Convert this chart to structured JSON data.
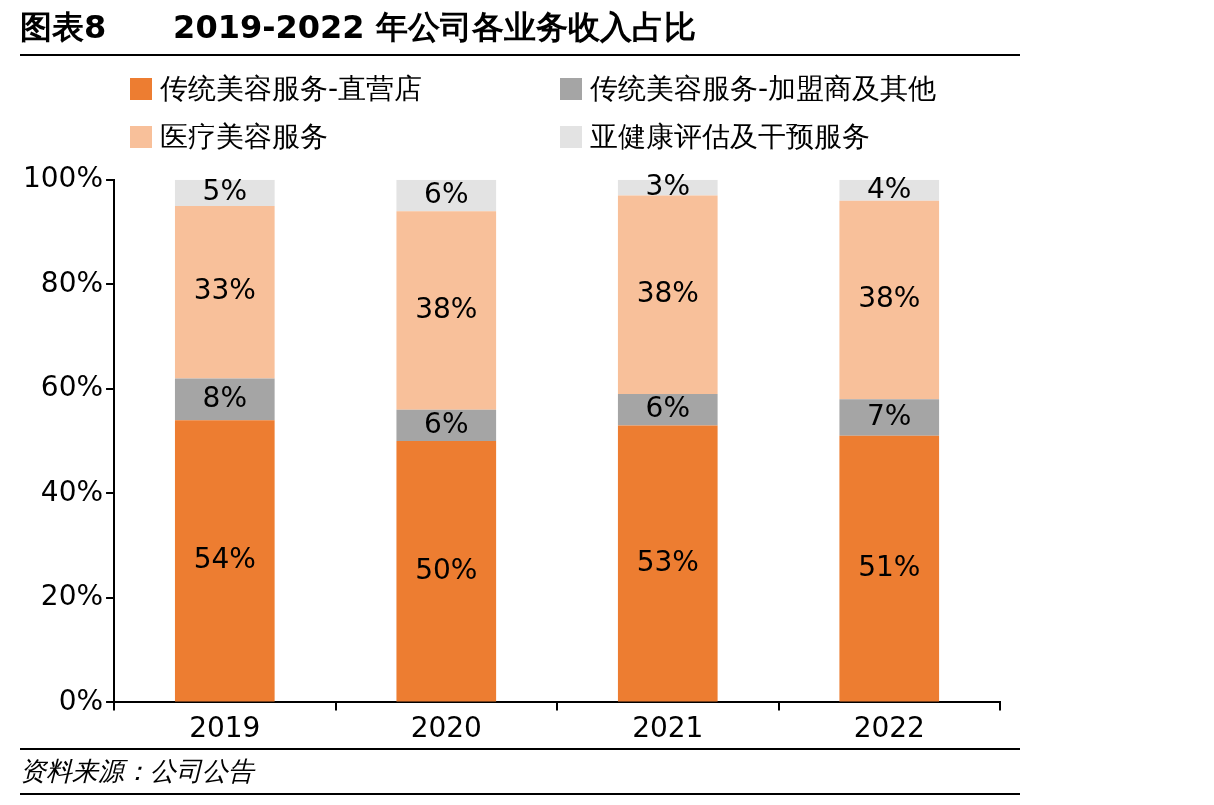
{
  "chart_data": {
    "type": "bar",
    "title": "图表8      2019-2022 年公司各业务收入占比",
    "categories": [
      "2019",
      "2020",
      "2021",
      "2022"
    ],
    "stacked": true,
    "legend": "top",
    "grid": false,
    "ylim": [
      0,
      100
    ],
    "yticks": [
      {
        "value": 0,
        "label": "0%"
      },
      {
        "value": 20,
        "label": "20%"
      },
      {
        "value": 40,
        "label": "40%"
      },
      {
        "value": 60,
        "label": "60%"
      },
      {
        "value": 80,
        "label": "80%"
      },
      {
        "value": 100,
        "label": "100%"
      }
    ],
    "series": [
      {
        "name": "传统美容服务-直营店",
        "color": "#ed7d31",
        "values": [
          54,
          50,
          53,
          51
        ],
        "value_labels": [
          "54%",
          "50%",
          "53%",
          "51%"
        ]
      },
      {
        "name": "传统美容服务-加盟商及其他",
        "color": "#a5a5a5",
        "values": [
          8,
          6,
          6,
          7
        ],
        "value_labels": [
          "8%",
          "6%",
          "6%",
          "7%"
        ]
      },
      {
        "name": "医疗美容服务",
        "color": "#f8c09a",
        "values": [
          33,
          38,
          38,
          38
        ],
        "value_labels": [
          "33%",
          "38%",
          "38%",
          "38%"
        ]
      },
      {
        "name": "亚健康评估及干预服务",
        "color": "#e3e3e3",
        "values": [
          5,
          6,
          3,
          4
        ],
        "value_labels": [
          "5%",
          "6%",
          "3%",
          "4%"
        ]
      }
    ],
    "annotations": [
      "资料来源：公司公告"
    ]
  }
}
